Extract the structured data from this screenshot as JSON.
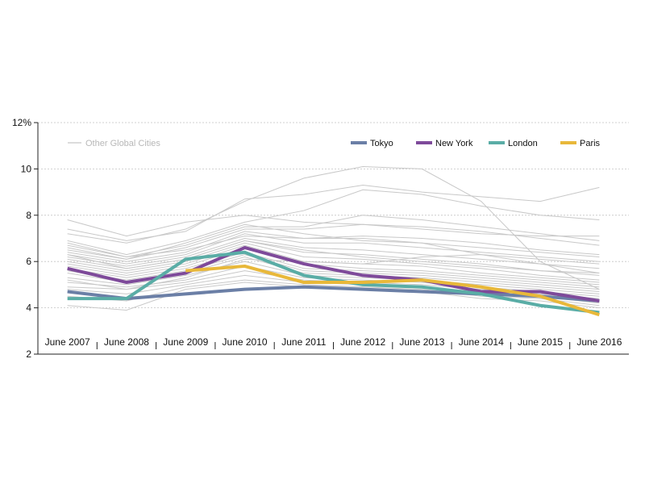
{
  "chart_data": {
    "type": "line",
    "title": "",
    "xlabel": "",
    "ylabel": "",
    "categories": [
      "June 2007",
      "June 2008",
      "June 2009",
      "June 2010",
      "June 2011",
      "June 2012",
      "June 2013",
      "June 2014",
      "June 2015",
      "June 2016"
    ],
    "ylim": [
      2,
      12
    ],
    "yticks": [
      2,
      4,
      6,
      8,
      10,
      12
    ],
    "ytick_labels": [
      "2",
      "4",
      "6",
      "8",
      "10",
      "12%"
    ],
    "grid": "horizontal dashed",
    "legend_position": "top",
    "series": [
      {
        "name": "Tokyo",
        "color": "#6b7fa6",
        "values": [
          4.7,
          4.4,
          4.6,
          4.8,
          4.9,
          4.8,
          4.7,
          4.6,
          4.5,
          4.3
        ]
      },
      {
        "name": "New York",
        "color": "#7e4a9a",
        "values": [
          5.7,
          5.1,
          5.5,
          6.6,
          5.9,
          5.4,
          5.2,
          4.7,
          4.7,
          4.3
        ]
      },
      {
        "name": "London",
        "color": "#5aada6",
        "values": [
          4.4,
          4.4,
          6.1,
          6.4,
          5.4,
          5.0,
          4.9,
          4.6,
          4.1,
          3.8
        ]
      },
      {
        "name": "Paris",
        "color": "#e8b83a",
        "values": [
          null,
          null,
          5.6,
          5.8,
          5.1,
          5.1,
          5.2,
          4.9,
          4.5,
          3.7
        ]
      }
    ],
    "background_series": {
      "name": "Other Global Cities",
      "color": "#c8c8c8",
      "lines": [
        [
          7.8,
          7.1,
          7.7,
          8.0,
          7.7,
          7.6,
          7.4,
          7.2,
          7.1,
          7.1
        ],
        [
          7.4,
          6.9,
          7.3,
          8.7,
          8.9,
          9.3,
          9.0,
          8.8,
          8.6,
          9.2
        ],
        [
          7.2,
          6.8,
          7.4,
          8.6,
          9.6,
          10.1,
          10.0,
          8.6,
          6.0,
          4.8
        ],
        [
          6.9,
          6.3,
          6.9,
          7.7,
          8.2,
          9.1,
          8.9,
          8.4,
          8.0,
          7.8
        ],
        [
          6.7,
          6.2,
          6.7,
          7.5,
          7.5,
          8.0,
          7.8,
          7.5,
          7.2,
          6.9
        ],
        [
          6.5,
          6.1,
          6.6,
          7.4,
          7.4,
          7.6,
          7.5,
          7.3,
          7.0,
          6.7
        ],
        [
          6.4,
          6.0,
          6.4,
          7.3,
          7.0,
          7.1,
          7.0,
          6.8,
          6.5,
          6.3
        ],
        [
          6.3,
          5.9,
          6.3,
          7.2,
          6.8,
          6.8,
          6.6,
          6.4,
          6.2,
          6.0
        ],
        [
          6.2,
          5.8,
          6.2,
          7.0,
          6.6,
          6.5,
          6.3,
          6.1,
          5.9,
          5.7
        ],
        [
          6.1,
          5.7,
          6.1,
          6.9,
          6.4,
          6.3,
          6.1,
          5.9,
          5.6,
          5.4
        ],
        [
          6.0,
          5.6,
          6.0,
          6.8,
          6.2,
          6.1,
          5.9,
          5.7,
          5.4,
          5.2
        ],
        [
          5.9,
          5.5,
          5.9,
          6.7,
          6.0,
          5.9,
          5.8,
          5.5,
          5.3,
          5.1
        ],
        [
          5.8,
          5.4,
          5.8,
          6.6,
          5.9,
          5.7,
          5.6,
          5.4,
          5.2,
          5.0
        ],
        [
          5.7,
          5.3,
          5.7,
          6.4,
          5.7,
          5.6,
          5.5,
          5.3,
          5.1,
          4.9
        ],
        [
          5.6,
          5.2,
          5.6,
          6.3,
          5.6,
          5.5,
          5.4,
          5.2,
          5.0,
          4.8
        ],
        [
          5.5,
          5.1,
          5.5,
          6.2,
          5.5,
          5.4,
          5.3,
          5.1,
          4.9,
          4.7
        ],
        [
          5.3,
          5.0,
          5.4,
          6.0,
          5.4,
          5.3,
          5.2,
          5.0,
          4.8,
          4.6
        ],
        [
          5.1,
          4.9,
          5.2,
          5.8,
          5.3,
          5.2,
          5.1,
          4.9,
          4.7,
          4.5
        ],
        [
          4.9,
          4.8,
          5.1,
          5.6,
          5.2,
          5.1,
          5.0,
          4.8,
          4.6,
          4.4
        ],
        [
          4.8,
          4.6,
          5.0,
          5.4,
          5.1,
          5.0,
          4.9,
          4.7,
          4.5,
          4.2
        ],
        [
          4.5,
          4.3,
          4.9,
          5.2,
          5.0,
          4.9,
          4.8,
          4.5,
          4.4,
          4.1
        ],
        [
          4.1,
          3.9,
          4.8,
          5.1,
          4.9,
          4.8,
          4.7,
          4.4,
          4.3,
          4.0
        ],
        [
          6.6,
          6.1,
          6.8,
          7.6,
          7.2,
          6.9,
          6.8,
          6.6,
          6.4,
          6.2
        ],
        [
          6.8,
          6.2,
          6.5,
          7.1,
          7.0,
          7.0,
          6.8,
          6.3,
          6.1,
          5.9
        ],
        [
          5.2,
          4.8,
          5.3,
          6.1,
          6.0,
          5.9,
          6.2,
          6.3,
          5.9,
          5.5
        ],
        [
          6.3,
          5.7,
          6.1,
          6.9,
          6.5,
          6.2,
          6.0,
          5.8,
          5.6,
          5.5
        ]
      ]
    }
  }
}
